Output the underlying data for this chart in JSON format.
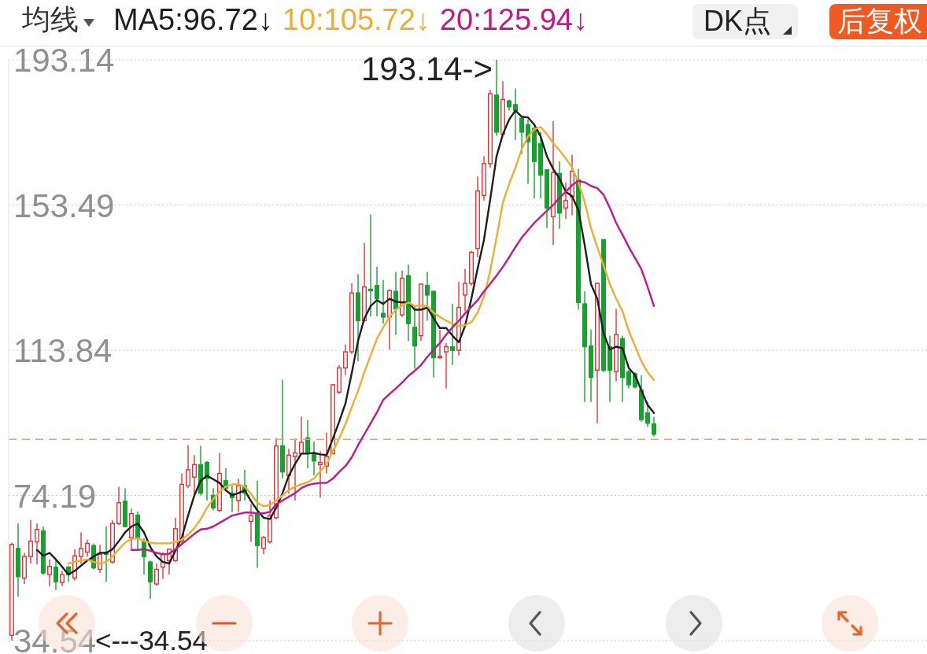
{
  "chart_data": {
    "type": "candlestick",
    "categories": [
      null,
      null,
      null,
      null,
      null,
      null,
      null,
      null,
      null,
      null,
      null,
      null,
      null,
      null,
      null,
      null,
      null,
      null,
      null,
      null,
      null,
      null,
      null,
      null,
      null,
      null,
      null,
      null,
      null,
      null,
      null,
      null,
      null,
      null,
      null,
      null,
      null,
      null,
      null,
      null,
      null,
      null,
      null,
      null,
      null,
      null,
      null,
      null,
      null,
      null,
      null,
      null,
      null,
      null,
      null,
      null,
      null,
      null,
      null,
      null,
      null,
      null,
      null,
      null,
      null,
      null,
      null,
      null,
      null,
      null,
      null,
      null,
      null,
      null,
      null,
      null,
      null,
      null,
      null,
      null,
      null,
      null,
      null,
      null,
      null,
      null,
      null,
      null,
      null,
      null,
      null,
      null,
      null,
      null,
      null,
      null,
      null,
      null,
      null,
      null,
      null,
      null,
      null
    ],
    "ohlc": [
      [
        36.0,
        61.3,
        34.54,
        60.8
      ],
      [
        59.7,
        66.5,
        46.6,
        52.0
      ],
      [
        51.6,
        58.5,
        50.0,
        57.5
      ],
      [
        57.5,
        67.5,
        55.6,
        61.7
      ],
      [
        61.5,
        66.5,
        55.4,
        64.9
      ],
      [
        64.5,
        65.7,
        52.6,
        53.0
      ],
      [
        52.6,
        56.7,
        49.4,
        54.8
      ],
      [
        54.6,
        56.7,
        48.4,
        50.6
      ],
      [
        50.4,
        53.6,
        49.4,
        52.6
      ],
      [
        54.6,
        55.0,
        50.6,
        52.6
      ],
      [
        51.6,
        59.5,
        51.0,
        57.7
      ],
      [
        57.5,
        64.1,
        55.6,
        59.7
      ],
      [
        58.7,
        62.1,
        57.5,
        61.1
      ],
      [
        60.5,
        61.1,
        54.0,
        54.4
      ],
      [
        54.0,
        60.7,
        53.0,
        58.1
      ],
      [
        58.7,
        65.7,
        50.6,
        58.1
      ],
      [
        56.0,
        67.5,
        55.6,
        66.5
      ],
      [
        66.5,
        76.5,
        66.1,
        72.2
      ],
      [
        72.6,
        76.1,
        65.5,
        65.7
      ],
      [
        62.7,
        70.6,
        59.5,
        69.2
      ],
      [
        68.8,
        69.8,
        59.1,
        62.7
      ],
      [
        61.7,
        62.5,
        52.6,
        57.5
      ],
      [
        56.0,
        56.4,
        46.0,
        50.6
      ],
      [
        50.0,
        55.6,
        49.6,
        54.0
      ],
      [
        54.6,
        58.7,
        51.4,
        58.1
      ],
      [
        56.4,
        59.7,
        52.6,
        59.5
      ],
      [
        56.4,
        68.1,
        56.0,
        65.1
      ],
      [
        61.7,
        80.2,
        61.1,
        77.2
      ],
      [
        76.8,
        87.9,
        76.2,
        81.2
      ],
      [
        79.2,
        85.2,
        74.2,
        82.6
      ],
      [
        82.6,
        87.7,
        74.2,
        74.8
      ],
      [
        83.2,
        83.6,
        72.8,
        78.8
      ],
      [
        74.2,
        76.2,
        70.1,
        70.8
      ],
      [
        70.1,
        85.8,
        69.7,
        80.2
      ],
      [
        78.2,
        81.6,
        75.2,
        76.2
      ],
      [
        74.8,
        76.8,
        69.7,
        73.6
      ],
      [
        72.8,
        78.8,
        69.7,
        76.8
      ],
      [
        76.8,
        81.2,
        72.8,
        74.8
      ],
      [
        67.1,
        71.8,
        61.5,
        68.7
      ],
      [
        69.1,
        78.2,
        54.4,
        60.5
      ],
      [
        59.7,
        63.1,
        58.1,
        62.7
      ],
      [
        61.5,
        72.8,
        61.1,
        68.7
      ],
      [
        68.1,
        89.9,
        67.7,
        87.7
      ],
      [
        87.7,
        105.8,
        78.8,
        80.6
      ],
      [
        79.6,
        86.9,
        74.8,
        85.2
      ],
      [
        84.8,
        89.7,
        72.8,
        85.8
      ],
      [
        85.6,
        95.7,
        85.4,
        88.7
      ],
      [
        89.9,
        94.7,
        81.6,
        85.8
      ],
      [
        85.8,
        88.9,
        79.6,
        83.6
      ],
      [
        82.6,
        86.3,
        73.6,
        83.2
      ],
      [
        82.2,
        91.3,
        80.2,
        84.8
      ],
      [
        85.6,
        104.6,
        85.4,
        104.4
      ],
      [
        102.4,
        109.8,
        101.9,
        109.0
      ],
      [
        109.0,
        115.4,
        107.0,
        113.4
      ],
      [
        113.4,
        132.1,
        112.8,
        129.5
      ],
      [
        129.5,
        134.6,
        110.8,
        121.9
      ],
      [
        121.9,
        143.2,
        121.5,
        131.1
      ],
      [
        130.5,
        150.9,
        123.1,
        130.1
      ],
      [
        131.5,
        136.6,
        123.1,
        127.9
      ],
      [
        123.9,
        133.0,
        121.1,
        122.9
      ],
      [
        122.9,
        130.5,
        114.0,
        130.1
      ],
      [
        129.9,
        135.2,
        118.1,
        125.1
      ],
      [
        123.5,
        135.6,
        122.9,
        133.5
      ],
      [
        134.2,
        137.2,
        116.4,
        121.1
      ],
      [
        120.1,
        126.1,
        108.8,
        115.0
      ],
      [
        117.8,
        132.1,
        116.4,
        131.9
      ],
      [
        131.5,
        135.2,
        121.9,
        128.9
      ],
      [
        129.9,
        130.1,
        106.4,
        111.8
      ],
      [
        111.8,
        119.5,
        111.4,
        112.2
      ],
      [
        113.4,
        115.8,
        103.4,
        114.8
      ],
      [
        114.8,
        126.5,
        109.8,
        113.8
      ],
      [
        113.8,
        132.5,
        112.4,
        125.5
      ],
      [
        128.9,
        136.0,
        124.5,
        132.1
      ],
      [
        132.1,
        141.0,
        131.5,
        140.6
      ],
      [
        141.6,
        161.3,
        139.2,
        157.3
      ],
      [
        156.1,
        166.8,
        154.7,
        164.8
      ],
      [
        164.8,
        184.9,
        163.7,
        183.9
      ],
      [
        183.5,
        193.14,
        172.4,
        173.4
      ],
      [
        172.8,
        187.3,
        172.4,
        182.3
      ],
      [
        181.9,
        182.3,
        179.3,
        180.3
      ],
      [
        180.9,
        185.3,
        171.2,
        179.3
      ],
      [
        177.2,
        177.8,
        167.4,
        173.4
      ],
      [
        175.4,
        176.8,
        159.3,
        170.8
      ],
      [
        174.4,
        174.8,
        155.3,
        165.4
      ],
      [
        170.2,
        173.4,
        155.3,
        161.7
      ],
      [
        163.1,
        163.1,
        147.2,
        152.7
      ],
      [
        150.3,
        176.4,
        142.6,
        162.3
      ],
      [
        162.1,
        165.4,
        147.0,
        151.3
      ],
      [
        152.7,
        159.7,
        149.7,
        154.7
      ],
      [
        155.7,
        167.2,
        150.7,
        162.7
      ],
      [
        160.3,
        163.3,
        124.9,
        126.9
      ],
      [
        126.5,
        129.9,
        99.7,
        114.8
      ],
      [
        115.0,
        119.5,
        99.7,
        106.4
      ],
      [
        108.4,
        132.3,
        93.9,
        132.1
      ],
      [
        144.0,
        144.2,
        107.8,
        108.4
      ],
      [
        114.8,
        117.8,
        99.7,
        108.4
      ],
      [
        108.0,
        125.1,
        105.4,
        118.1
      ],
      [
        117.0,
        117.8,
        99.7,
        106.4
      ],
      [
        108.0,
        108.4,
        103.4,
        104.4
      ],
      [
        107.4,
        107.8,
        103.4,
        103.8
      ],
      [
        103.0,
        107.0,
        94.3,
        94.9
      ],
      [
        96.7,
        99.7,
        92.9,
        93.9
      ],
      [
        93.7,
        95.7,
        90.3,
        90.9
      ]
    ],
    "colors": [
      "#d8383a",
      "#18a030",
      "#d8383a",
      "#d8383a",
      "#d8383a",
      "#18a030",
      "#d8383a",
      "#18a030",
      "#d8383a",
      "#18a030",
      "#d8383a",
      "#d8383a",
      "#d8383a",
      "#18a030",
      "#d8383a",
      "#18a030",
      "#d8383a",
      "#d8383a",
      "#18a030",
      "#d8383a",
      "#18a030",
      "#18a030",
      "#18a030",
      "#d8383a",
      "#d8383a",
      "#d8383a",
      "#d8383a",
      "#d8383a",
      "#d8383a",
      "#d8383a",
      "#18a030",
      "#18a030",
      "#18a030",
      "#d8383a",
      "#18a030",
      "#18a030",
      "#d8383a",
      "#18a030",
      "#d8383a",
      "#18a030",
      "#d8383a",
      "#d8383a",
      "#d8383a",
      "#18a030",
      "#d8383a",
      "#d8383a",
      "#d8383a",
      "#18a030",
      "#18a030",
      "#d8383a",
      "#d8383a",
      "#d8383a",
      "#d8383a",
      "#d8383a",
      "#d8383a",
      "#18a030",
      "#d8383a",
      "#18a030",
      "#18a030",
      "#18a030",
      "#d8383a",
      "#18a030",
      "#d8383a",
      "#18a030",
      "#18a030",
      "#d8383a",
      "#18a030",
      "#18a030",
      "#d8383a",
      "#d8383a",
      "#18a030",
      "#d8383a",
      "#d8383a",
      "#d8383a",
      "#d8383a",
      "#d8383a",
      "#d8383a",
      "#18a030",
      "#d8383a",
      "#18a030",
      "#18a030",
      "#18a030",
      "#18a030",
      "#18a030",
      "#18a030",
      "#18a030",
      "#d8383a",
      "#18a030",
      "#d8383a",
      "#d8383a",
      "#18a030",
      "#18a030",
      "#18a030",
      "#d8383a",
      "#18a030",
      "#18a030",
      "#d8383a",
      "#18a030",
      "#18a030",
      "#18a030",
      "#18a030",
      "#18a030",
      "#18a030"
    ],
    "series": [
      {
        "type": "line",
        "name": "MA5:96.72↓",
        "color": "#1e1e1e",
        "values": [
          null,
          null,
          null,
          null,
          59.3,
          57.7,
          58.5,
          56.7,
          54.7,
          52.6,
          53.6,
          55.0,
          56.4,
          57.5,
          58.5,
          58.5,
          59.5,
          61.7,
          64.1,
          65.7,
          66.5,
          64.1,
          60.1,
          57.5,
          56.0,
          55.6,
          59.1,
          62.7,
          68.7,
          74.2,
          78.2,
          79.6,
          78.6,
          77.6,
          75.6,
          74.2,
          74.8,
          75.6,
          72.6,
          70.1,
          68.1,
          67.7,
          70.8,
          74.8,
          79.6,
          82.8,
          85.6,
          85.6,
          85.8,
          85.4,
          85.2,
          89.7,
          94.3,
          99.3,
          107.6,
          116.4,
          122.5,
          125.9,
          127.5,
          126.5,
          127.9,
          127.1,
          126.9,
          126.9,
          124.9,
          124.9,
          125.5,
          122.5,
          119.9,
          119.9,
          117.8,
          116.0,
          120.5,
          127.9,
          136.2,
          144.0,
          155.1,
          166.8,
          172.8,
          176.8,
          179.3,
          177.6,
          177.4,
          175.4,
          172.2,
          166.8,
          163.3,
          160.7,
          157.1,
          155.9,
          152.1,
          142.6,
          131.9,
          127.9,
          118.5,
          114.0,
          114.8,
          114.4,
          109.0,
          107.0,
          102.9,
          98.9,
          96.7
        ]
      },
      {
        "type": "line",
        "name": "10:105.72↓",
        "color": "#f0ad32",
        "values": [
          null,
          null,
          null,
          null,
          null,
          null,
          null,
          null,
          null,
          55.6,
          56.0,
          56.4,
          56.7,
          56.0,
          55.6,
          56.0,
          57.5,
          59.5,
          61.3,
          62.3,
          62.5,
          61.7,
          61.3,
          61.1,
          61.1,
          61.1,
          61.5,
          62.1,
          63.5,
          65.3,
          67.7,
          70.8,
          73.2,
          75.2,
          76.6,
          77.2,
          77.2,
          76.6,
          74.6,
          72.2,
          71.2,
          71.6,
          72.8,
          74.2,
          75.6,
          76.6,
          77.2,
          77.8,
          78.8,
          80.8,
          82.8,
          86.3,
          89.7,
          93.7,
          98.3,
          102.7,
          107.8,
          112.4,
          117.0,
          120.1,
          122.9,
          124.9,
          126.1,
          126.9,
          125.9,
          126.1,
          125.9,
          124.1,
          122.9,
          121.9,
          121.1,
          120.5,
          120.7,
          121.5,
          124.1,
          128.5,
          135.6,
          144.6,
          154.1,
          159.3,
          163.7,
          168.8,
          172.2,
          174.2,
          174.8,
          172.8,
          170.4,
          168.4,
          166.2,
          163.7,
          159.7,
          154.3,
          147.2,
          142.0,
          137.0,
          131.9,
          127.9,
          124.5,
          119.1,
          115.0,
          110.8,
          107.8,
          105.7
        ]
      },
      {
        "type": "line",
        "name": "20:125.94↓",
        "color": "#c2188a",
        "values": [
          null,
          null,
          null,
          null,
          null,
          null,
          null,
          null,
          null,
          null,
          null,
          null,
          null,
          null,
          null,
          null,
          null,
          null,
          null,
          59.3,
          59.3,
          59.5,
          59.1,
          58.5,
          58.1,
          58.3,
          59.5,
          60.9,
          62.3,
          63.7,
          64.9,
          65.1,
          65.7,
          66.7,
          67.7,
          68.7,
          69.1,
          69.5,
          69.5,
          69.3,
          69.3,
          69.7,
          71.8,
          72.8,
          73.8,
          74.8,
          76.2,
          77.0,
          77.4,
          77.6,
          77.6,
          78.8,
          80.6,
          82.2,
          84.6,
          87.9,
          90.9,
          93.9,
          96.9,
          100.3,
          101.9,
          103.4,
          105.0,
          106.8,
          108.2,
          109.8,
          112.0,
          114.0,
          115.8,
          118.1,
          120.1,
          121.9,
          123.9,
          125.7,
          127.5,
          129.9,
          132.0,
          134.2,
          136.6,
          139.2,
          142.0,
          144.6,
          146.6,
          148.6,
          150.3,
          151.9,
          153.5,
          155.5,
          157.1,
          158.9,
          160.1,
          159.7,
          158.7,
          158.1,
          156.3,
          152.7,
          148.6,
          145.4,
          142.0,
          139.0,
          136.0,
          131.1,
          125.9
        ]
      }
    ],
    "legend_title": "均线",
    "legend": "top left",
    "ylim": [
      34.54,
      193.14
    ],
    "yticks": [
      34.54,
      74.19,
      113.84,
      153.49,
      193.14
    ],
    "grid": "y",
    "marker": "none",
    "line_style": "solid",
    "ref_lines": [
      {
        "axis": "y",
        "value": 89.5,
        "color": "#d2ab86",
        "line_style": "dashed"
      }
    ],
    "annotations": [
      "193.14->",
      "<---34.54",
      "DK点",
      "后复权"
    ]
  }
}
